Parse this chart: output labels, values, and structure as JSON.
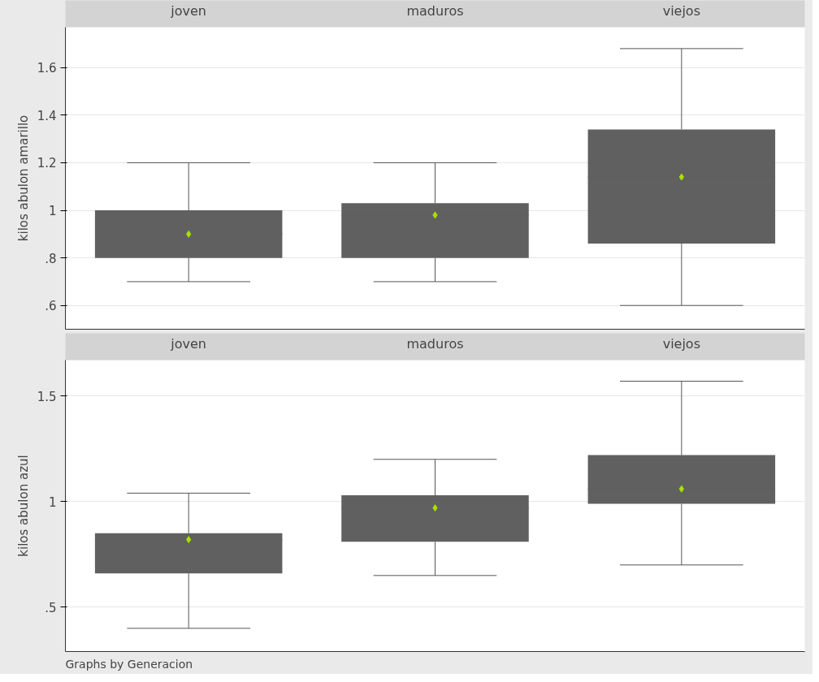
{
  "chart_data": [
    {
      "type": "box",
      "categories": [
        "joven",
        "maduros",
        "viejos"
      ],
      "ylabel": "kilos abulon amarillo",
      "ylim": [
        0.5,
        1.77
      ],
      "yticks": [
        {
          "value": 0.6,
          "label": ".6"
        },
        {
          "value": 0.8,
          "label": ".8"
        },
        1,
        {
          "value": 1.2,
          "label": "1.2"
        },
        {
          "value": 1.4,
          "label": "1.4"
        },
        {
          "value": 1.6,
          "label": "1.6"
        }
      ],
      "grid": "y",
      "color": "#606060",
      "marker": "diamond",
      "tick_labels": "y",
      "boxes": [
        {
          "low": 0.7,
          "q1": 0.8,
          "median": 0.9,
          "q3": 1.0,
          "high": 1.2,
          "mean": 0.9
        },
        {
          "low": 0.7,
          "q1": 0.8,
          "median": 0.98,
          "q3": 1.03,
          "high": 1.2,
          "mean": 0.98
        },
        {
          "low": 0.6,
          "q1": 0.86,
          "median": 1.14,
          "q3": 1.34,
          "high": 1.68,
          "mean": 1.14
        }
      ]
    },
    {
      "type": "box",
      "categories": [
        "joven",
        "maduros",
        "viejos"
      ],
      "ylabel": "kilos abulon azul",
      "ylim": [
        0.29,
        1.67
      ],
      "yticks": [
        {
          "value": 0.5,
          "label": ".5"
        },
        1,
        1.5
      ],
      "grid": "y",
      "color": "#606060",
      "marker": "diamond",
      "tick_labels": "y",
      "boxes": [
        {
          "low": 0.4,
          "q1": 0.66,
          "median": 0.82,
          "q3": 0.85,
          "high": 1.04,
          "mean": 0.82
        },
        {
          "low": 0.65,
          "q1": 0.81,
          "median": 0.97,
          "q3": 1.03,
          "high": 1.2,
          "mean": 0.97
        },
        {
          "low": 0.7,
          "q1": 0.99,
          "median": 1.06,
          "q3": 1.22,
          "high": 1.57,
          "mean": 1.06
        }
      ],
      "annotations": [
        "Graphs by Generacion"
      ]
    }
  ]
}
